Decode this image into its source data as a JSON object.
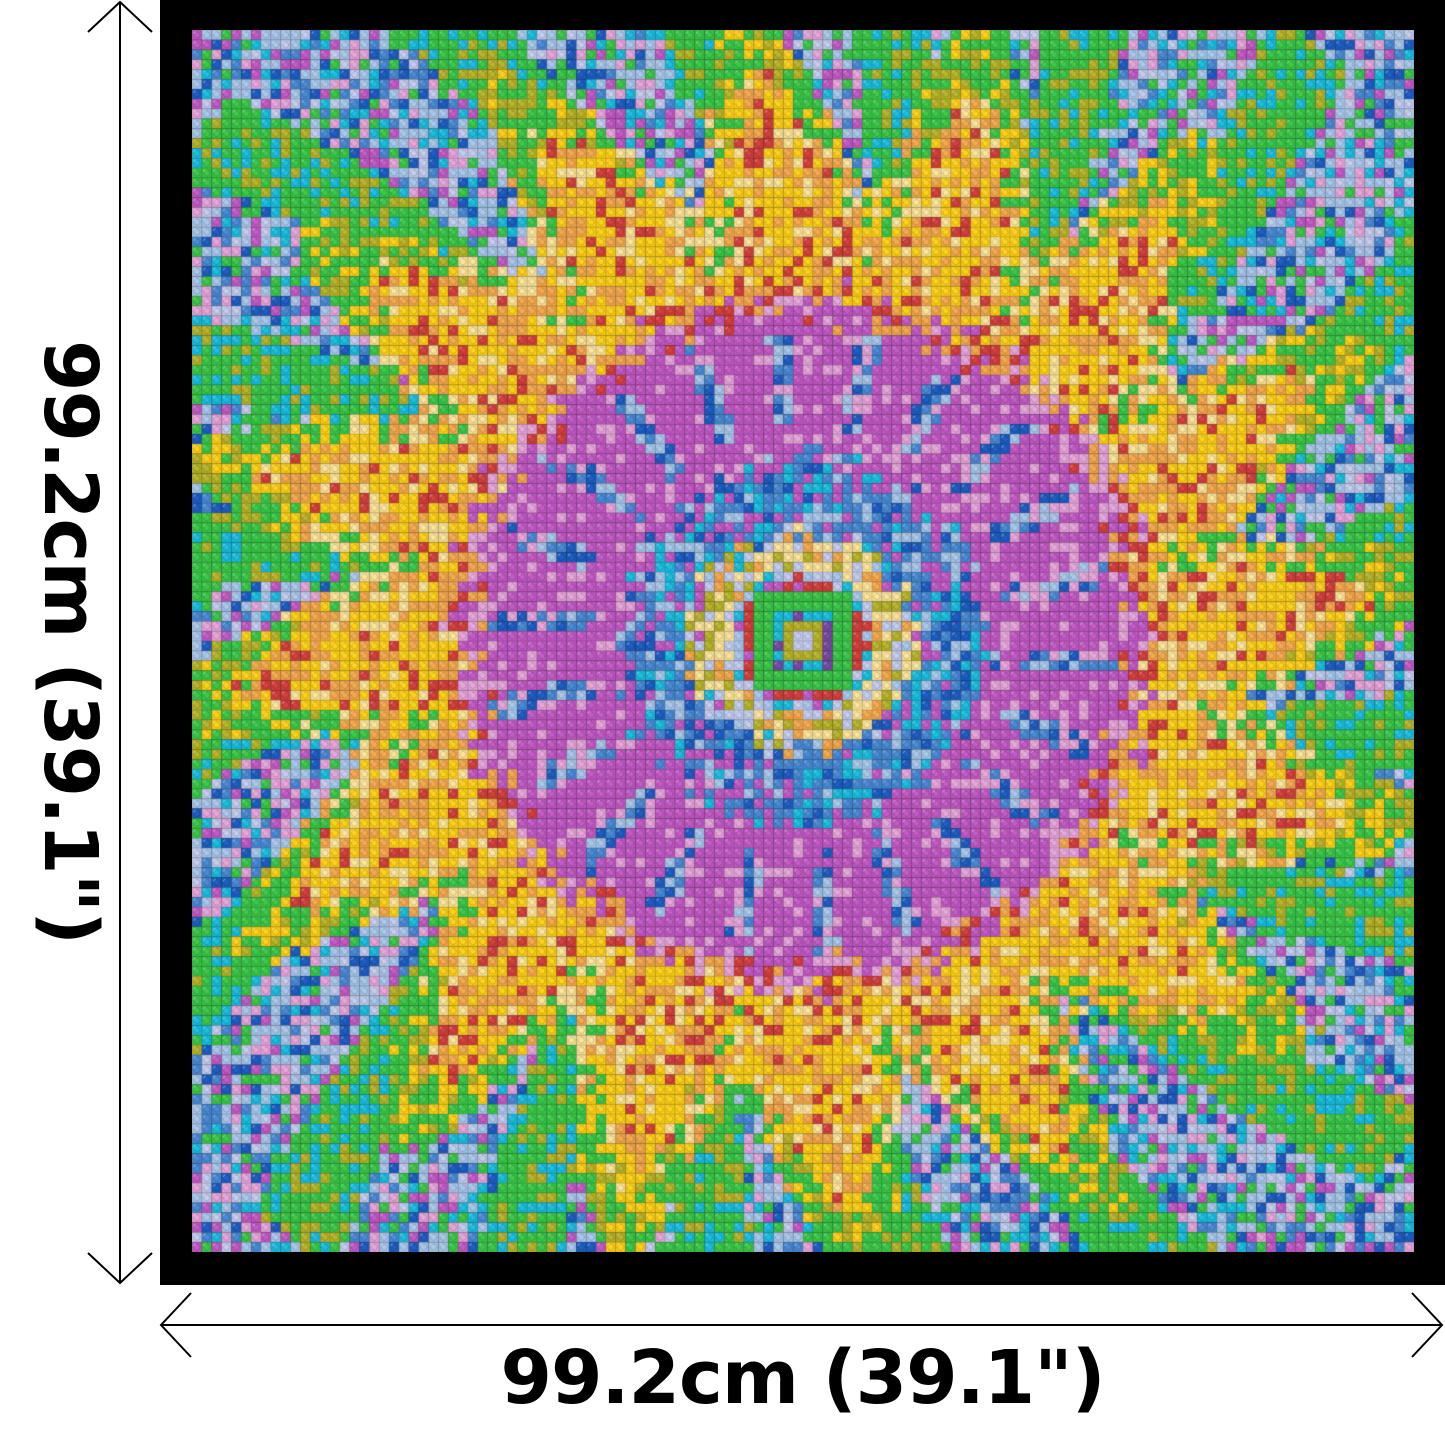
{
  "dimensions": {
    "width_label": "99.2cm (39.1\")",
    "height_label": "99.2cm (39.1\")"
  },
  "mosaic": {
    "studs_per_side": 124,
    "palette": {
      "light_blue": "#a9c8ec",
      "lavender": "#c5cdf0",
      "cyan": "#1cbfe0",
      "medium_blue": "#4a8bd6",
      "dark_blue": "#1f5fc4",
      "green": "#3cc94a",
      "olive": "#b8b52a",
      "magenta": "#c45bc7",
      "pink": "#e8a6dc",
      "red": "#d4413f",
      "purple": "#7b4aa8",
      "yellow": "#ffd21a",
      "orange": "#f5a94e",
      "cream": "#fde59a",
      "frame": "#000000"
    }
  }
}
